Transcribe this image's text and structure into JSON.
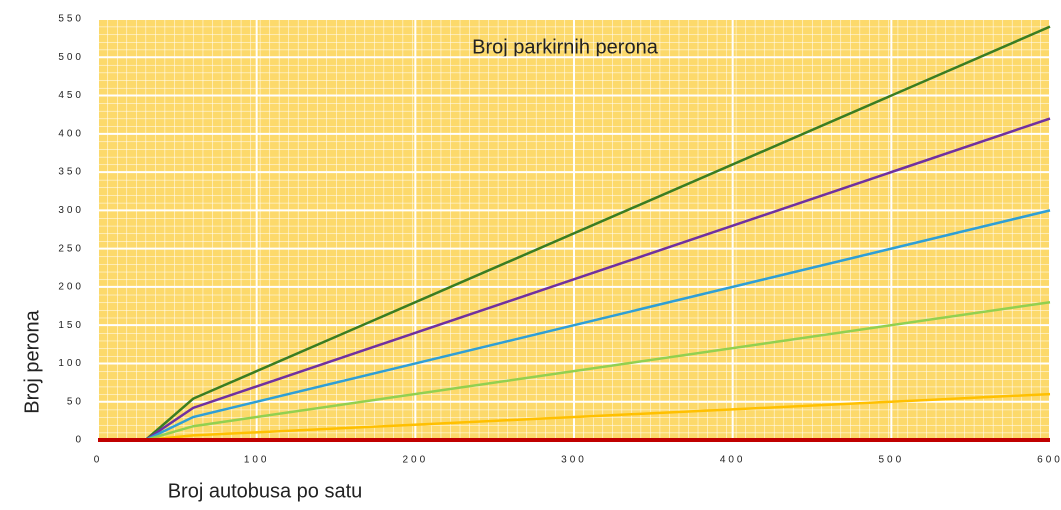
{
  "chart_data": {
    "type": "line",
    "title": "Broj parkirnih perona",
    "xlabel": "Broj autobusa po satu",
    "ylabel": "Broj perona",
    "x": [
      0,
      30,
      60,
      600
    ],
    "series": [
      {
        "color": "#3a7d22",
        "values": [
          0,
          0,
          54,
          540
        ]
      },
      {
        "color": "#7030a0",
        "values": [
          0,
          0,
          42,
          420
        ]
      },
      {
        "color": "#2e9fd6",
        "values": [
          0,
          0,
          30,
          300
        ]
      },
      {
        "color": "#92d050",
        "values": [
          0,
          0,
          18,
          180
        ]
      },
      {
        "color": "#ffc000",
        "values": [
          0,
          0,
          6,
          60
        ]
      },
      {
        "color": "#c00000",
        "values": [
          0,
          0,
          0,
          0
        ]
      }
    ],
    "xlim": [
      0,
      600
    ],
    "xticks": [
      0,
      100,
      200,
      300,
      400,
      500,
      600
    ],
    "ylim": [
      0,
      550
    ],
    "yticks": [
      0,
      50,
      100,
      150,
      200,
      250,
      300,
      350,
      400,
      450,
      500,
      550
    ]
  }
}
